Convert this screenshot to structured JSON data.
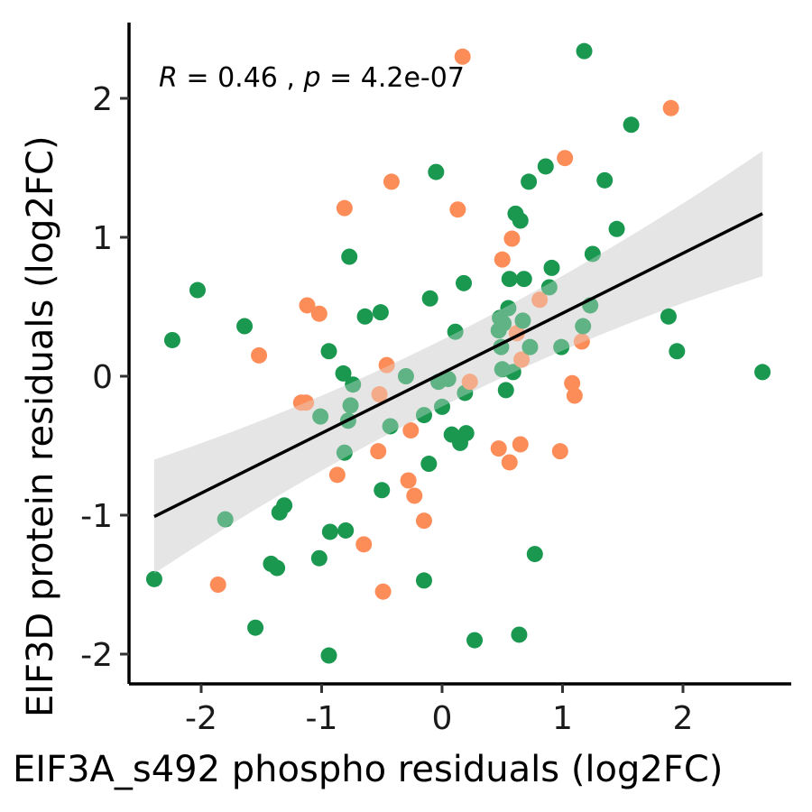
{
  "chart_data": {
    "type": "scatter",
    "xlabel": "EIF3A_s492 phospho residuals (log2FC)",
    "ylabel": "EIF3D protein residuals (log2FC)",
    "xlim": [
      -2.62,
      2.88
    ],
    "ylim": [
      -2.22,
      2.55
    ],
    "x_ticks": [
      -2,
      -1,
      0,
      1,
      2
    ],
    "x_tick_labels": [
      "-2",
      "-1",
      "0",
      "1",
      "2"
    ],
    "y_ticks": [
      -2,
      -1,
      0,
      1,
      2
    ],
    "y_tick_labels": [
      "-2",
      "-1",
      "0",
      "1",
      "2"
    ],
    "grid": false,
    "annotation": {
      "r_symbol": "R",
      "r_text": " = 0.46 , ",
      "p_symbol": "p",
      "p_text": " = 4.2e-07"
    },
    "regression": {
      "x": [
        -2.39,
        2.66
      ],
      "y": [
        -1.01,
        1.17
      ],
      "band_upper": [
        -0.6,
        1.62
      ],
      "band_lower": [
        -1.42,
        0.72
      ],
      "band_color": "#e5e5e5",
      "line_color": "#000000"
    },
    "colors": {
      "green": "#1a9850",
      "orange": "#fc8d59"
    },
    "points": [
      {
        "x": -2.39,
        "y": -1.46,
        "g": "green"
      },
      {
        "x": -2.24,
        "y": 0.26,
        "g": "green"
      },
      {
        "x": -2.03,
        "y": 0.62,
        "g": "green"
      },
      {
        "x": -1.86,
        "y": -1.5,
        "g": "orange"
      },
      {
        "x": -1.8,
        "y": -1.03,
        "g": "green"
      },
      {
        "x": -1.64,
        "y": 0.36,
        "g": "green"
      },
      {
        "x": -1.55,
        "y": -1.81,
        "g": "green"
      },
      {
        "x": -1.52,
        "y": 0.15,
        "g": "orange"
      },
      {
        "x": -1.42,
        "y": -1.35,
        "g": "green"
      },
      {
        "x": -1.37,
        "y": -1.38,
        "g": "green"
      },
      {
        "x": -1.35,
        "y": -0.98,
        "g": "green"
      },
      {
        "x": -1.31,
        "y": -0.93,
        "g": "green"
      },
      {
        "x": -1.17,
        "y": -0.19,
        "g": "orange"
      },
      {
        "x": -1.13,
        "y": -0.19,
        "g": "orange"
      },
      {
        "x": -1.12,
        "y": 0.51,
        "g": "orange"
      },
      {
        "x": -1.02,
        "y": 0.45,
        "g": "orange"
      },
      {
        "x": -1.02,
        "y": -1.31,
        "g": "green"
      },
      {
        "x": -1.01,
        "y": -0.29,
        "g": "green"
      },
      {
        "x": -0.94,
        "y": 0.18,
        "g": "green"
      },
      {
        "x": -0.94,
        "y": -2.01,
        "g": "green"
      },
      {
        "x": -0.93,
        "y": -1.12,
        "g": "green"
      },
      {
        "x": -0.87,
        "y": -0.71,
        "g": "orange"
      },
      {
        "x": -0.82,
        "y": 0.02,
        "g": "green"
      },
      {
        "x": -0.81,
        "y": 1.21,
        "g": "orange"
      },
      {
        "x": -0.81,
        "y": -0.55,
        "g": "green"
      },
      {
        "x": -0.8,
        "y": -1.11,
        "g": "green"
      },
      {
        "x": -0.78,
        "y": -0.32,
        "g": "green"
      },
      {
        "x": -0.77,
        "y": 0.86,
        "g": "green"
      },
      {
        "x": -0.76,
        "y": -0.21,
        "g": "green"
      },
      {
        "x": -0.74,
        "y": -0.06,
        "g": "green"
      },
      {
        "x": -0.64,
        "y": 0.43,
        "g": "green"
      },
      {
        "x": -0.65,
        "y": -1.21,
        "g": "orange"
      },
      {
        "x": -0.52,
        "y": -0.13,
        "g": "orange"
      },
      {
        "x": -0.53,
        "y": -0.54,
        "g": "orange"
      },
      {
        "x": -0.51,
        "y": 0.46,
        "g": "green"
      },
      {
        "x": -0.49,
        "y": -1.55,
        "g": "orange"
      },
      {
        "x": -0.5,
        "y": -0.82,
        "g": "green"
      },
      {
        "x": -0.46,
        "y": 0.08,
        "g": "orange"
      },
      {
        "x": -0.43,
        "y": -0.36,
        "g": "green"
      },
      {
        "x": -0.42,
        "y": 1.4,
        "g": "orange"
      },
      {
        "x": -0.3,
        "y": 0.0,
        "g": "green"
      },
      {
        "x": -0.28,
        "y": -0.75,
        "g": "orange"
      },
      {
        "x": -0.26,
        "y": -0.39,
        "g": "orange"
      },
      {
        "x": -0.23,
        "y": -0.86,
        "g": "orange"
      },
      {
        "x": -0.15,
        "y": -0.28,
        "g": "green"
      },
      {
        "x": -0.15,
        "y": -1.04,
        "g": "orange"
      },
      {
        "x": -0.15,
        "y": -1.47,
        "g": "green"
      },
      {
        "x": -0.11,
        "y": -0.63,
        "g": "green"
      },
      {
        "x": -0.1,
        "y": 0.56,
        "g": "green"
      },
      {
        "x": -0.05,
        "y": 1.47,
        "g": "green"
      },
      {
        "x": -0.03,
        "y": -0.04,
        "g": "green"
      },
      {
        "x": 0.0,
        "y": -0.22,
        "g": "green"
      },
      {
        "x": 0.05,
        "y": -0.02,
        "g": "green"
      },
      {
        "x": 0.08,
        "y": -0.42,
        "g": "green"
      },
      {
        "x": 0.11,
        "y": 0.32,
        "g": "green"
      },
      {
        "x": 0.13,
        "y": 1.2,
        "g": "orange"
      },
      {
        "x": 0.15,
        "y": -0.48,
        "g": "green"
      },
      {
        "x": 0.17,
        "y": 2.3,
        "g": "orange"
      },
      {
        "x": 0.18,
        "y": 0.67,
        "g": "green"
      },
      {
        "x": 0.19,
        "y": -0.12,
        "g": "green"
      },
      {
        "x": 0.2,
        "y": -0.41,
        "g": "green"
      },
      {
        "x": 0.23,
        "y": -0.04,
        "g": "orange"
      },
      {
        "x": 0.27,
        "y": -1.9,
        "g": "green"
      },
      {
        "x": 0.47,
        "y": -0.52,
        "g": "orange"
      },
      {
        "x": 0.47,
        "y": 0.33,
        "g": "green"
      },
      {
        "x": 0.48,
        "y": 0.42,
        "g": "green"
      },
      {
        "x": 0.49,
        "y": 0.21,
        "g": "green"
      },
      {
        "x": 0.5,
        "y": 0.84,
        "g": "orange"
      },
      {
        "x": 0.5,
        "y": 0.05,
        "g": "green"
      },
      {
        "x": 0.51,
        "y": 0.38,
        "g": "green"
      },
      {
        "x": 0.53,
        "y": -0.1,
        "g": "green"
      },
      {
        "x": 0.55,
        "y": 0.49,
        "g": "green"
      },
      {
        "x": 0.56,
        "y": 0.7,
        "g": "green"
      },
      {
        "x": 0.56,
        "y": -0.62,
        "g": "orange"
      },
      {
        "x": 0.58,
        "y": 0.99,
        "g": "orange"
      },
      {
        "x": 0.59,
        "y": 0.03,
        "g": "green"
      },
      {
        "x": 0.61,
        "y": 1.17,
        "g": "green"
      },
      {
        "x": 0.62,
        "y": 0.31,
        "g": "orange"
      },
      {
        "x": 0.64,
        "y": -1.86,
        "g": "green"
      },
      {
        "x": 0.65,
        "y": -0.49,
        "g": "orange"
      },
      {
        "x": 0.65,
        "y": 1.12,
        "g": "green"
      },
      {
        "x": 0.66,
        "y": 0.12,
        "g": "orange"
      },
      {
        "x": 0.67,
        "y": 0.4,
        "g": "green"
      },
      {
        "x": 0.68,
        "y": 0.7,
        "g": "green"
      },
      {
        "x": 0.72,
        "y": 1.4,
        "g": "green"
      },
      {
        "x": 0.73,
        "y": 0.21,
        "g": "green"
      },
      {
        "x": 0.77,
        "y": -1.28,
        "g": "green"
      },
      {
        "x": 0.81,
        "y": 0.55,
        "g": "orange"
      },
      {
        "x": 0.86,
        "y": 1.51,
        "g": "green"
      },
      {
        "x": 0.89,
        "y": 0.64,
        "g": "green"
      },
      {
        "x": 0.91,
        "y": 0.78,
        "g": "green"
      },
      {
        "x": 0.98,
        "y": -0.54,
        "g": "orange"
      },
      {
        "x": 0.99,
        "y": 0.21,
        "g": "green"
      },
      {
        "x": 1.02,
        "y": 1.57,
        "g": "orange"
      },
      {
        "x": 1.08,
        "y": -0.05,
        "g": "orange"
      },
      {
        "x": 1.1,
        "y": -0.14,
        "g": "orange"
      },
      {
        "x": 1.16,
        "y": 0.25,
        "g": "orange"
      },
      {
        "x": 1.17,
        "y": 0.36,
        "g": "green"
      },
      {
        "x": 1.18,
        "y": 2.34,
        "g": "green"
      },
      {
        "x": 1.23,
        "y": 0.51,
        "g": "green"
      },
      {
        "x": 1.25,
        "y": 0.88,
        "g": "green"
      },
      {
        "x": 1.35,
        "y": 1.41,
        "g": "green"
      },
      {
        "x": 1.45,
        "y": 1.06,
        "g": "green"
      },
      {
        "x": 1.57,
        "y": 1.81,
        "g": "green"
      },
      {
        "x": 1.88,
        "y": 0.43,
        "g": "green"
      },
      {
        "x": 1.9,
        "y": 1.93,
        "g": "orange"
      },
      {
        "x": 1.95,
        "y": 0.18,
        "g": "green"
      },
      {
        "x": 2.66,
        "y": 0.03,
        "g": "green"
      }
    ]
  }
}
